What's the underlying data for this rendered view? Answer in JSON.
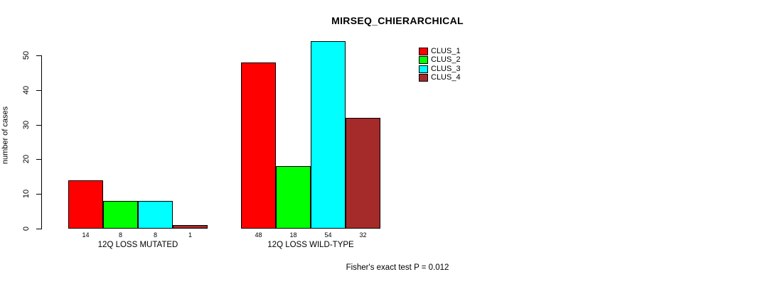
{
  "chart_data": {
    "type": "bar",
    "title": "MIRSEQ_CHIERARCHICAL",
    "ylabel": "number of cases",
    "xlabel": "",
    "ylim": [
      0,
      50
    ],
    "yticks": [
      0,
      10,
      20,
      30,
      40,
      50
    ],
    "grid": false,
    "legend_position": "top-right-inside",
    "series": [
      {
        "name": "CLUS_1",
        "color": "#ff0000"
      },
      {
        "name": "CLUS_2",
        "color": "#00ff00"
      },
      {
        "name": "CLUS_3",
        "color": "#00ffff"
      },
      {
        "name": "CLUS_4",
        "color": "#a52a2a"
      }
    ],
    "groups": [
      {
        "label": "12Q LOSS MUTATED",
        "values": [
          14,
          8,
          8,
          1
        ]
      },
      {
        "label": "12Q LOSS WILD-TYPE",
        "values": [
          48,
          18,
          54,
          32
        ]
      }
    ],
    "bar_value_labels": true,
    "annotation": "Fisher's exact test P = 0.012"
  }
}
